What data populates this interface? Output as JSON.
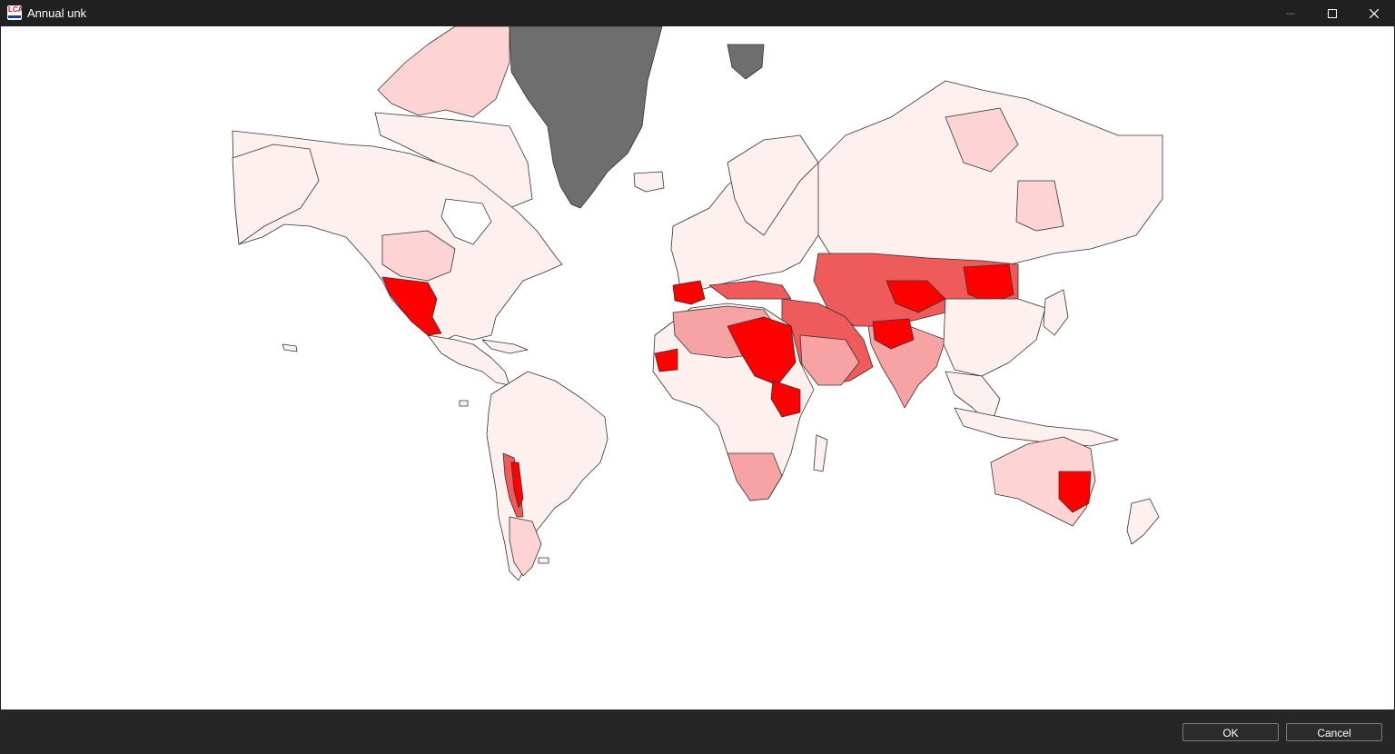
{
  "window": {
    "title": "Annual unk",
    "icon": "lca-app-icon",
    "icon_text": "LCA"
  },
  "controls": {
    "minimize_icon": "minimize-icon",
    "maximize_icon": "maximize-icon",
    "close_icon": "close-icon"
  },
  "map": {
    "projection": "mercator",
    "colors": {
      "background": "#ffffff",
      "no_data": "#6e6e6e",
      "boundary": "#333333",
      "very_low": "#fff0f0",
      "low": "#fdd3d3",
      "medium": "#f7a3a3",
      "high": "#ef5a5a",
      "very_high": "#ff0000"
    }
  },
  "buttons": {
    "ok": "OK",
    "cancel": "Cancel"
  }
}
